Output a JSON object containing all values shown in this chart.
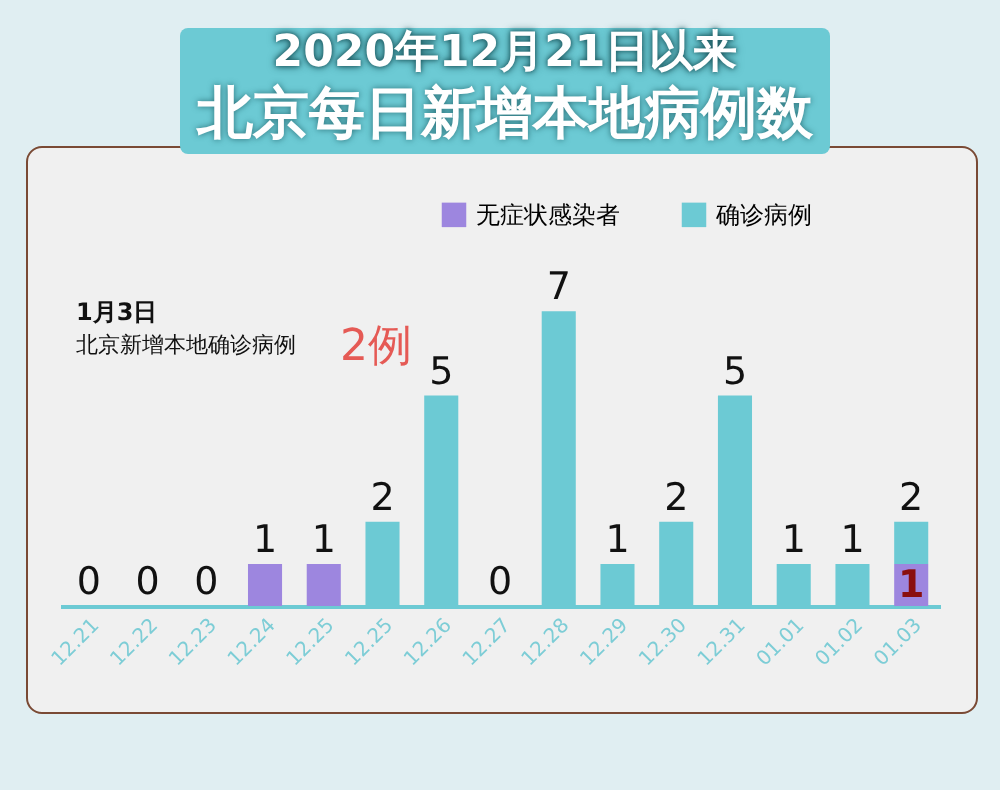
{
  "chart_data": {
    "type": "bar",
    "title": "2020年12月21日以来",
    "subtitle": "北京每日新增本地病例数",
    "categories": [
      "12.21",
      "12.22",
      "12.23",
      "12.24",
      "12.25",
      "12.25",
      "12.26",
      "12.27",
      "12.28",
      "12.29",
      "12.30",
      "12.31",
      "01.01",
      "01.02",
      "01.03"
    ],
    "stacked": true,
    "series": [
      {
        "name": "无症状感染者",
        "color": "#9d86df",
        "values": [
          0,
          0,
          0,
          1,
          1,
          0,
          0,
          0,
          0,
          0,
          0,
          0,
          0,
          0,
          1
        ],
        "value_labels": [
          null,
          null,
          null,
          null,
          null,
          null,
          null,
          null,
          null,
          null,
          null,
          null,
          null,
          null,
          "1"
        ]
      },
      {
        "name": "确诊病例",
        "color": "#6ccad4",
        "values": [
          0,
          0,
          0,
          0,
          0,
          2,
          5,
          0,
          7,
          1,
          2,
          5,
          1,
          1,
          1
        ]
      }
    ],
    "totals": [
      "0",
      "0",
      "0",
      "1",
      "1",
      "2",
      "5",
      "0",
      "7",
      "1",
      "2",
      "5",
      "1",
      "1",
      "2"
    ],
    "annotations": [
      "1月3日",
      "北京新增本地确诊病例",
      "2例"
    ],
    "legend": "top right",
    "grid": false
  }
}
